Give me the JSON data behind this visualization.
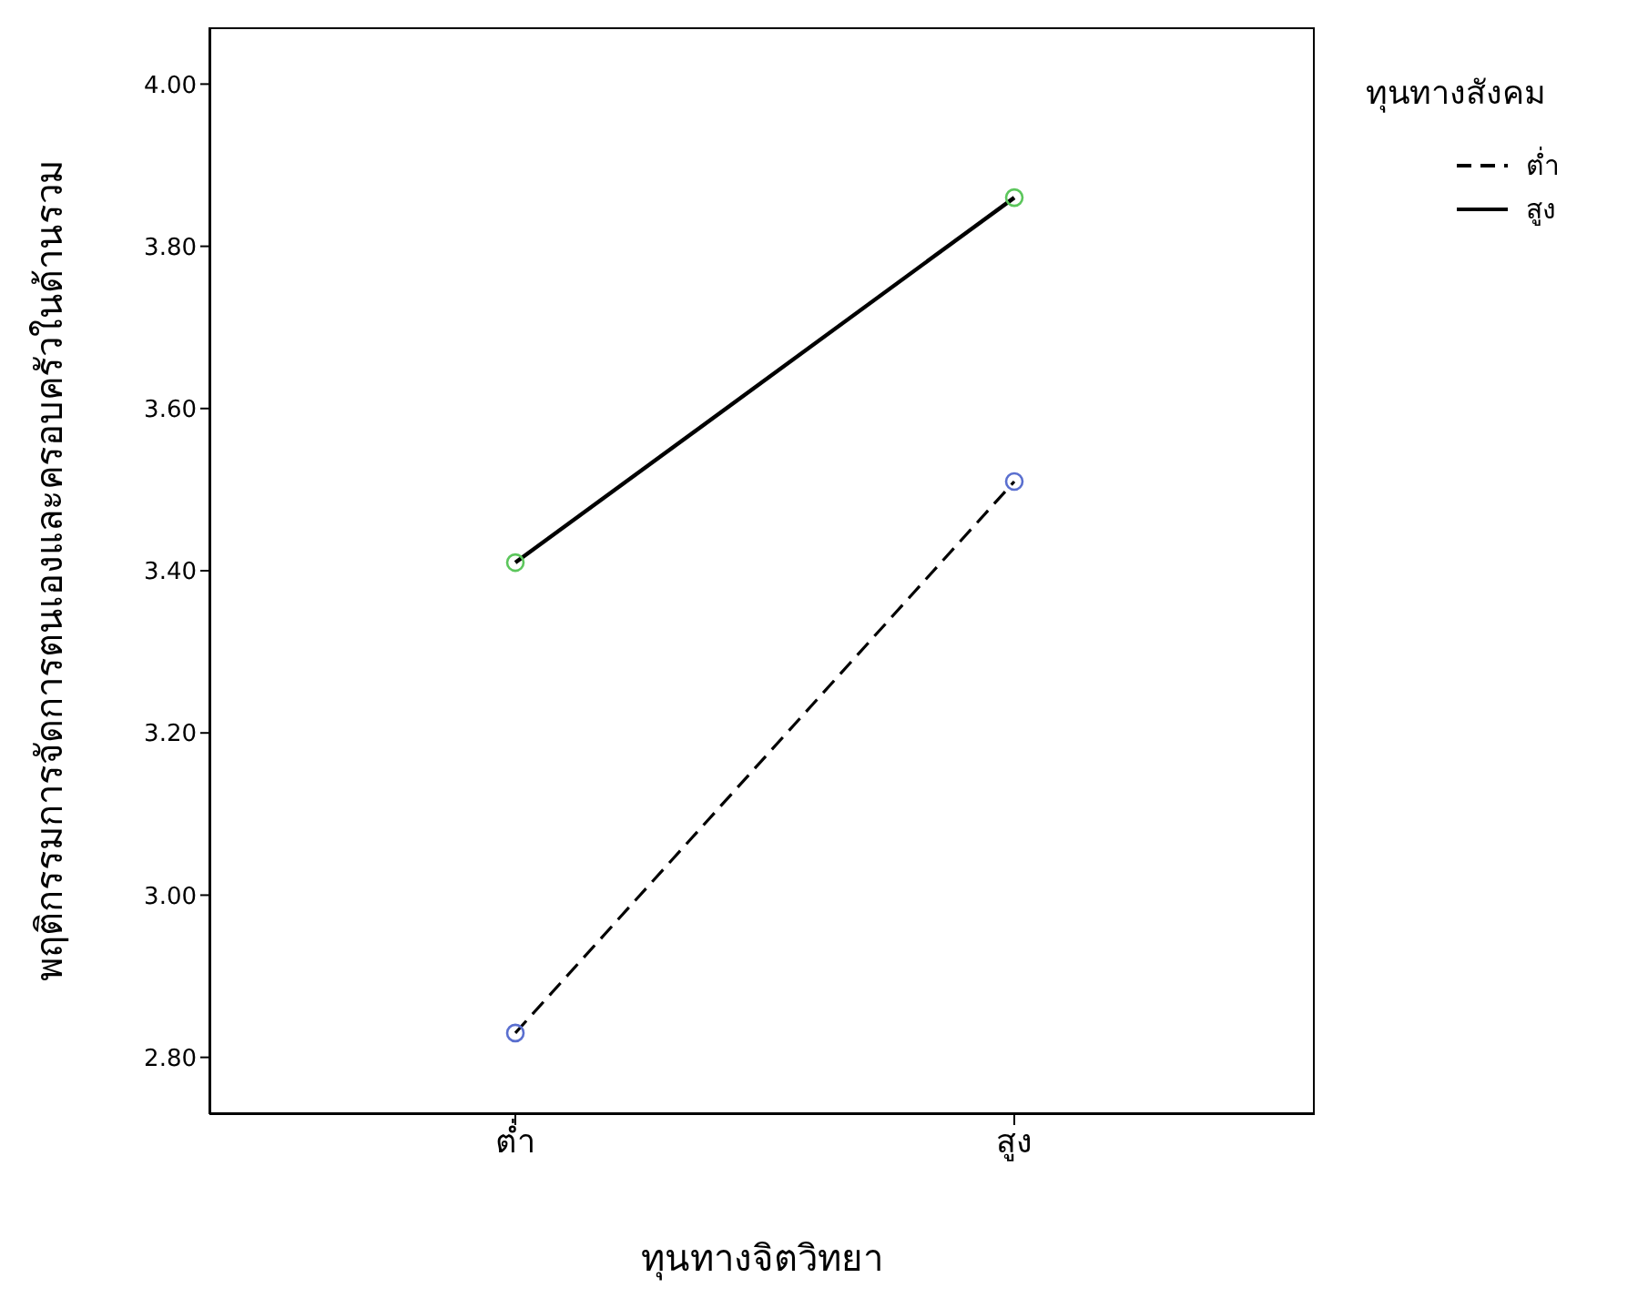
{
  "chart_data": {
    "type": "line",
    "xlabel": "ทุนทางจิตวิทยา",
    "ylabel": "พฤติกรรมการจัดการตนเองและครอบครัวในด้านรวม",
    "legend_title": "ทุนทางสังคม",
    "categories": [
      "ต่ำ",
      "สูง"
    ],
    "series": [
      {
        "name": "ต่ำ",
        "color": "#000000",
        "colors": [
          "#5a6fcf",
          "#5a6fcf"
        ],
        "line_style": "dashed",
        "values": [
          2.83,
          3.51
        ]
      },
      {
        "name": "สูง",
        "color": "#000000",
        "colors": [
          "#5cc65c",
          "#5cc65c"
        ],
        "line_style": "solid",
        "values": [
          3.41,
          3.86
        ]
      }
    ],
    "ylim": [
      2.73,
      4.07
    ],
    "yticks": [
      {
        "value": 2.8,
        "label": "2.80"
      },
      {
        "value": 3.0,
        "label": "3.00"
      },
      {
        "value": 3.2,
        "label": "3.20"
      },
      {
        "value": 3.4,
        "label": "3.40"
      },
      {
        "value": 3.6,
        "label": "3.60"
      },
      {
        "value": 3.8,
        "label": "3.80"
      },
      {
        "value": 4.0,
        "label": "4.00"
      }
    ],
    "marker": "circle",
    "legend": "top right",
    "grid": false
  }
}
